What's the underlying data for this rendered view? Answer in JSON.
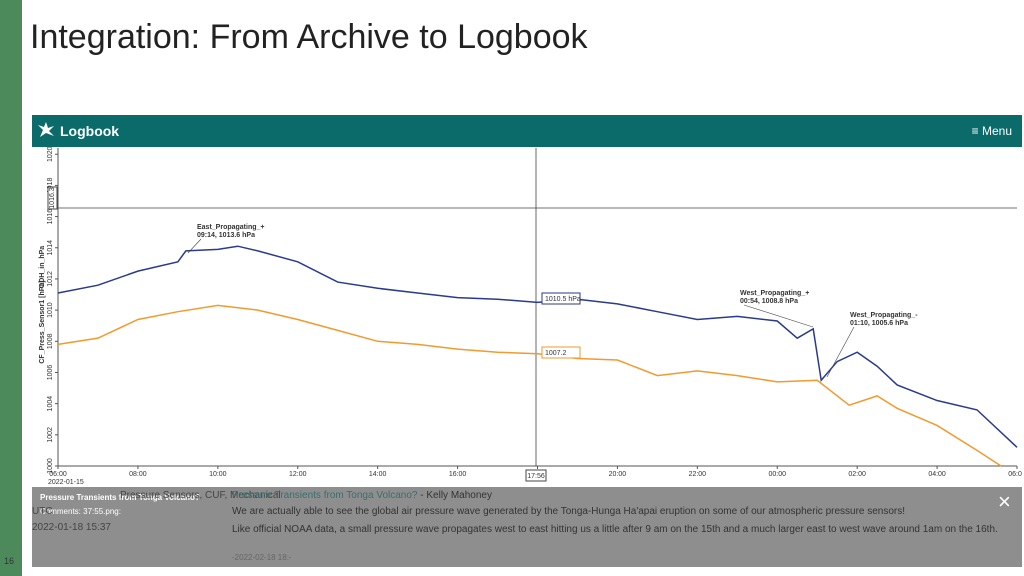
{
  "slide": {
    "title": "Integration: From Archive to Logbook",
    "page_number": "16"
  },
  "app": {
    "name": "Logbook",
    "menu": "Menu"
  },
  "chart_data": {
    "type": "line",
    "xlim": [
      0,
      24
    ],
    "xticks": [
      {
        "value": 0,
        "label": "06:00"
      },
      {
        "value": 2,
        "label": "08:00"
      },
      {
        "value": 4,
        "label": "10:00"
      },
      {
        "value": 6,
        "label": "12:00"
      },
      {
        "value": 8,
        "label": "14:00"
      },
      {
        "value": 10,
        "label": "16:00"
      },
      {
        "value": 12,
        "label": "18:00"
      },
      {
        "value": 14,
        "label": "20:00"
      },
      {
        "value": 16,
        "label": "22:00"
      },
      {
        "value": 18,
        "label": "00:00"
      },
      {
        "value": 20,
        "label": "02:00"
      },
      {
        "value": 22,
        "label": "04:00"
      },
      {
        "value": 24,
        "label": "06:00"
      }
    ],
    "x_start_date": "2022-01-15",
    "ylim": [
      1000,
      1020.4
    ],
    "yticks": [
      1000,
      1002,
      1004,
      1006,
      1008,
      1010,
      1012,
      1014,
      1016,
      1018,
      1020
    ],
    "series": [
      {
        "name": "CF_Press_Sensor1 [hPa]",
        "color": "#2a3a8c",
        "x": [
          0,
          1,
          2,
          3,
          3.2,
          4,
          4.5,
          5,
          6,
          7,
          8,
          9,
          10,
          11,
          12,
          13,
          14,
          15,
          16,
          17,
          18,
          18.5,
          18.9,
          19.1,
          19.5,
          20,
          20.5,
          21,
          22,
          23,
          24
        ],
        "values": [
          1011.1,
          1011.6,
          1012.5,
          1013.1,
          1013.8,
          1013.9,
          1014.1,
          1013.8,
          1013.1,
          1011.8,
          1011.4,
          1011.1,
          1010.8,
          1010.7,
          1010.5,
          1010.7,
          1010.4,
          1009.9,
          1009.4,
          1009.6,
          1009.3,
          1008.2,
          1008.8,
          1005.5,
          1006.7,
          1007.3,
          1006.4,
          1005.2,
          1004.2,
          1003.6,
          1001.2
        ]
      },
      {
        "name": "ODH_in_hPa",
        "color": "#f29a2e",
        "x": [
          0,
          1,
          2,
          3,
          4,
          5,
          6,
          7,
          8,
          9,
          10,
          11,
          12,
          13,
          14,
          15,
          16,
          17,
          18,
          19,
          19.8,
          20.5,
          21,
          22,
          23,
          23.6
        ],
        "values": [
          1007.8,
          1008.2,
          1009.4,
          1009.9,
          1010.3,
          1010.0,
          1009.4,
          1008.7,
          1008.0,
          1007.8,
          1007.5,
          1007.3,
          1007.2,
          1006.9,
          1006.8,
          1005.8,
          1006.1,
          1005.8,
          1005.4,
          1005.5,
          1003.9,
          1004.5,
          1003.7,
          1002.6,
          1001.0,
          1000.0
        ]
      }
    ],
    "annotations": [
      {
        "title": "East_Propagating_+",
        "text": "09:14, 1013.6 hPa"
      },
      {
        "title": "West_Propagating_+",
        "text": "00:54, 1008.8 hPa"
      },
      {
        "title": "West_Propagating_-",
        "text": "01:10, 1005.6 hPa"
      }
    ],
    "cursor": {
      "time": "17:56",
      "level": "1016.3",
      "value_1": "1010.5 hPa",
      "value_2": "1007.2"
    }
  },
  "entries": [
    {
      "meta": "Pressure Sensors, CUF, Mechanical",
      "zone": "UTC",
      "date": "2022-01-18 15:37",
      "caption_title": "Pressure Transients from Tonga Volcano?",
      "caption_file": "Comments: 37:55.png:",
      "link": "Pressure Transients from Tonga Volcano?",
      "author": " - Kelly Mahoney",
      "body_1": "We are actually able to see the global air pressure wave generated by the Tonga-Hunga Ha'apai eruption on some of our atmospheric pressure sensors!",
      "body_2": "Like official NOAA data, a small pressure wave propagates west to east hitting us a little after 9 am on the 15th and a much larger east to west wave around 1am on the 16th.",
      "footer": "-2022-02-18 18:-"
    }
  ]
}
